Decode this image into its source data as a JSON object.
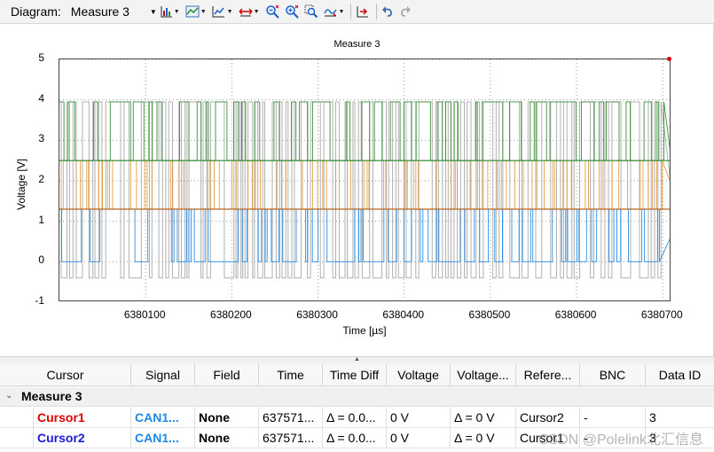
{
  "toolbar": {
    "diagram_label": "Diagram:",
    "diagram_selected": "Measure 3",
    "icons": [
      "bar-chart-icon",
      "line-chart-icon",
      "chart-settings-icon",
      "fit-horizontal-icon",
      "zoom-out-icon",
      "zoom-in-icon",
      "zoom-region-icon",
      "signal-shift-icon",
      "export-icon",
      "undo-icon",
      "redo-icon"
    ]
  },
  "chart_data": {
    "type": "line",
    "title": "Measure 3",
    "xlabel": "Time [µs]",
    "ylabel": "Voltage [V]",
    "xlim": [
      6380000,
      6380710
    ],
    "ylim": [
      -1,
      5
    ],
    "x_ticks": [
      "6380100",
      "6380200",
      "6380300",
      "6380400",
      "6380500",
      "6380600",
      "6380700"
    ],
    "x_tick_values": [
      6380100,
      6380200,
      6380300,
      6380400,
      6380500,
      6380600,
      6380700
    ],
    "y_ticks": [
      "5",
      "4",
      "3",
      "2",
      "1",
      "0",
      "-1"
    ],
    "y_tick_values": [
      5,
      4,
      3,
      2,
      1,
      0,
      -1
    ],
    "grid": true,
    "series": [
      {
        "color": "#a8a8a8",
        "low": -0.4,
        "high": 3.95,
        "values": [
          -0.4,
          3.95
        ]
      },
      {
        "color": "#2e8b2e",
        "low": 2.5,
        "high": 3.95,
        "values": [
          2.5,
          3.95
        ]
      },
      {
        "color": "#e39a3b",
        "low": 1.3,
        "high": 2.5,
        "values": [
          1.3,
          2.5
        ]
      },
      {
        "color": "#1e88e5",
        "low": 0.0,
        "high": 1.3,
        "values": [
          0.0,
          1.3
        ]
      }
    ]
  },
  "table": {
    "columns": [
      "Cursor",
      "Signal",
      "Field",
      "Time",
      "Time Diff",
      "Voltage",
      "Voltage...",
      "Refere...",
      "BNC",
      "Data ID"
    ],
    "group": "Measure 3",
    "rows": [
      {
        "cursor": "Cursor1",
        "cursor_color": "#e00000",
        "signal": "CAN1...",
        "field": "None",
        "time": "637571...",
        "time_diff": "Δ = 0.0...",
        "voltage": "0 V",
        "voltage_diff": "Δ = 0 V",
        "reference": "Cursor2",
        "bnc": "-",
        "data_id": "3"
      },
      {
        "cursor": "Cursor2",
        "cursor_color": "#1a1adc",
        "signal": "CAN1...",
        "field": "None",
        "time": "637571...",
        "time_diff": "Δ = 0.0...",
        "voltage": "0 V",
        "voltage_diff": "Δ = 0 V",
        "reference": "Cursor1",
        "bnc": "-",
        "data_id": "3"
      }
    ],
    "signal_color": "#1e88e5"
  },
  "watermark": "CSDN @Polelink北汇信息"
}
